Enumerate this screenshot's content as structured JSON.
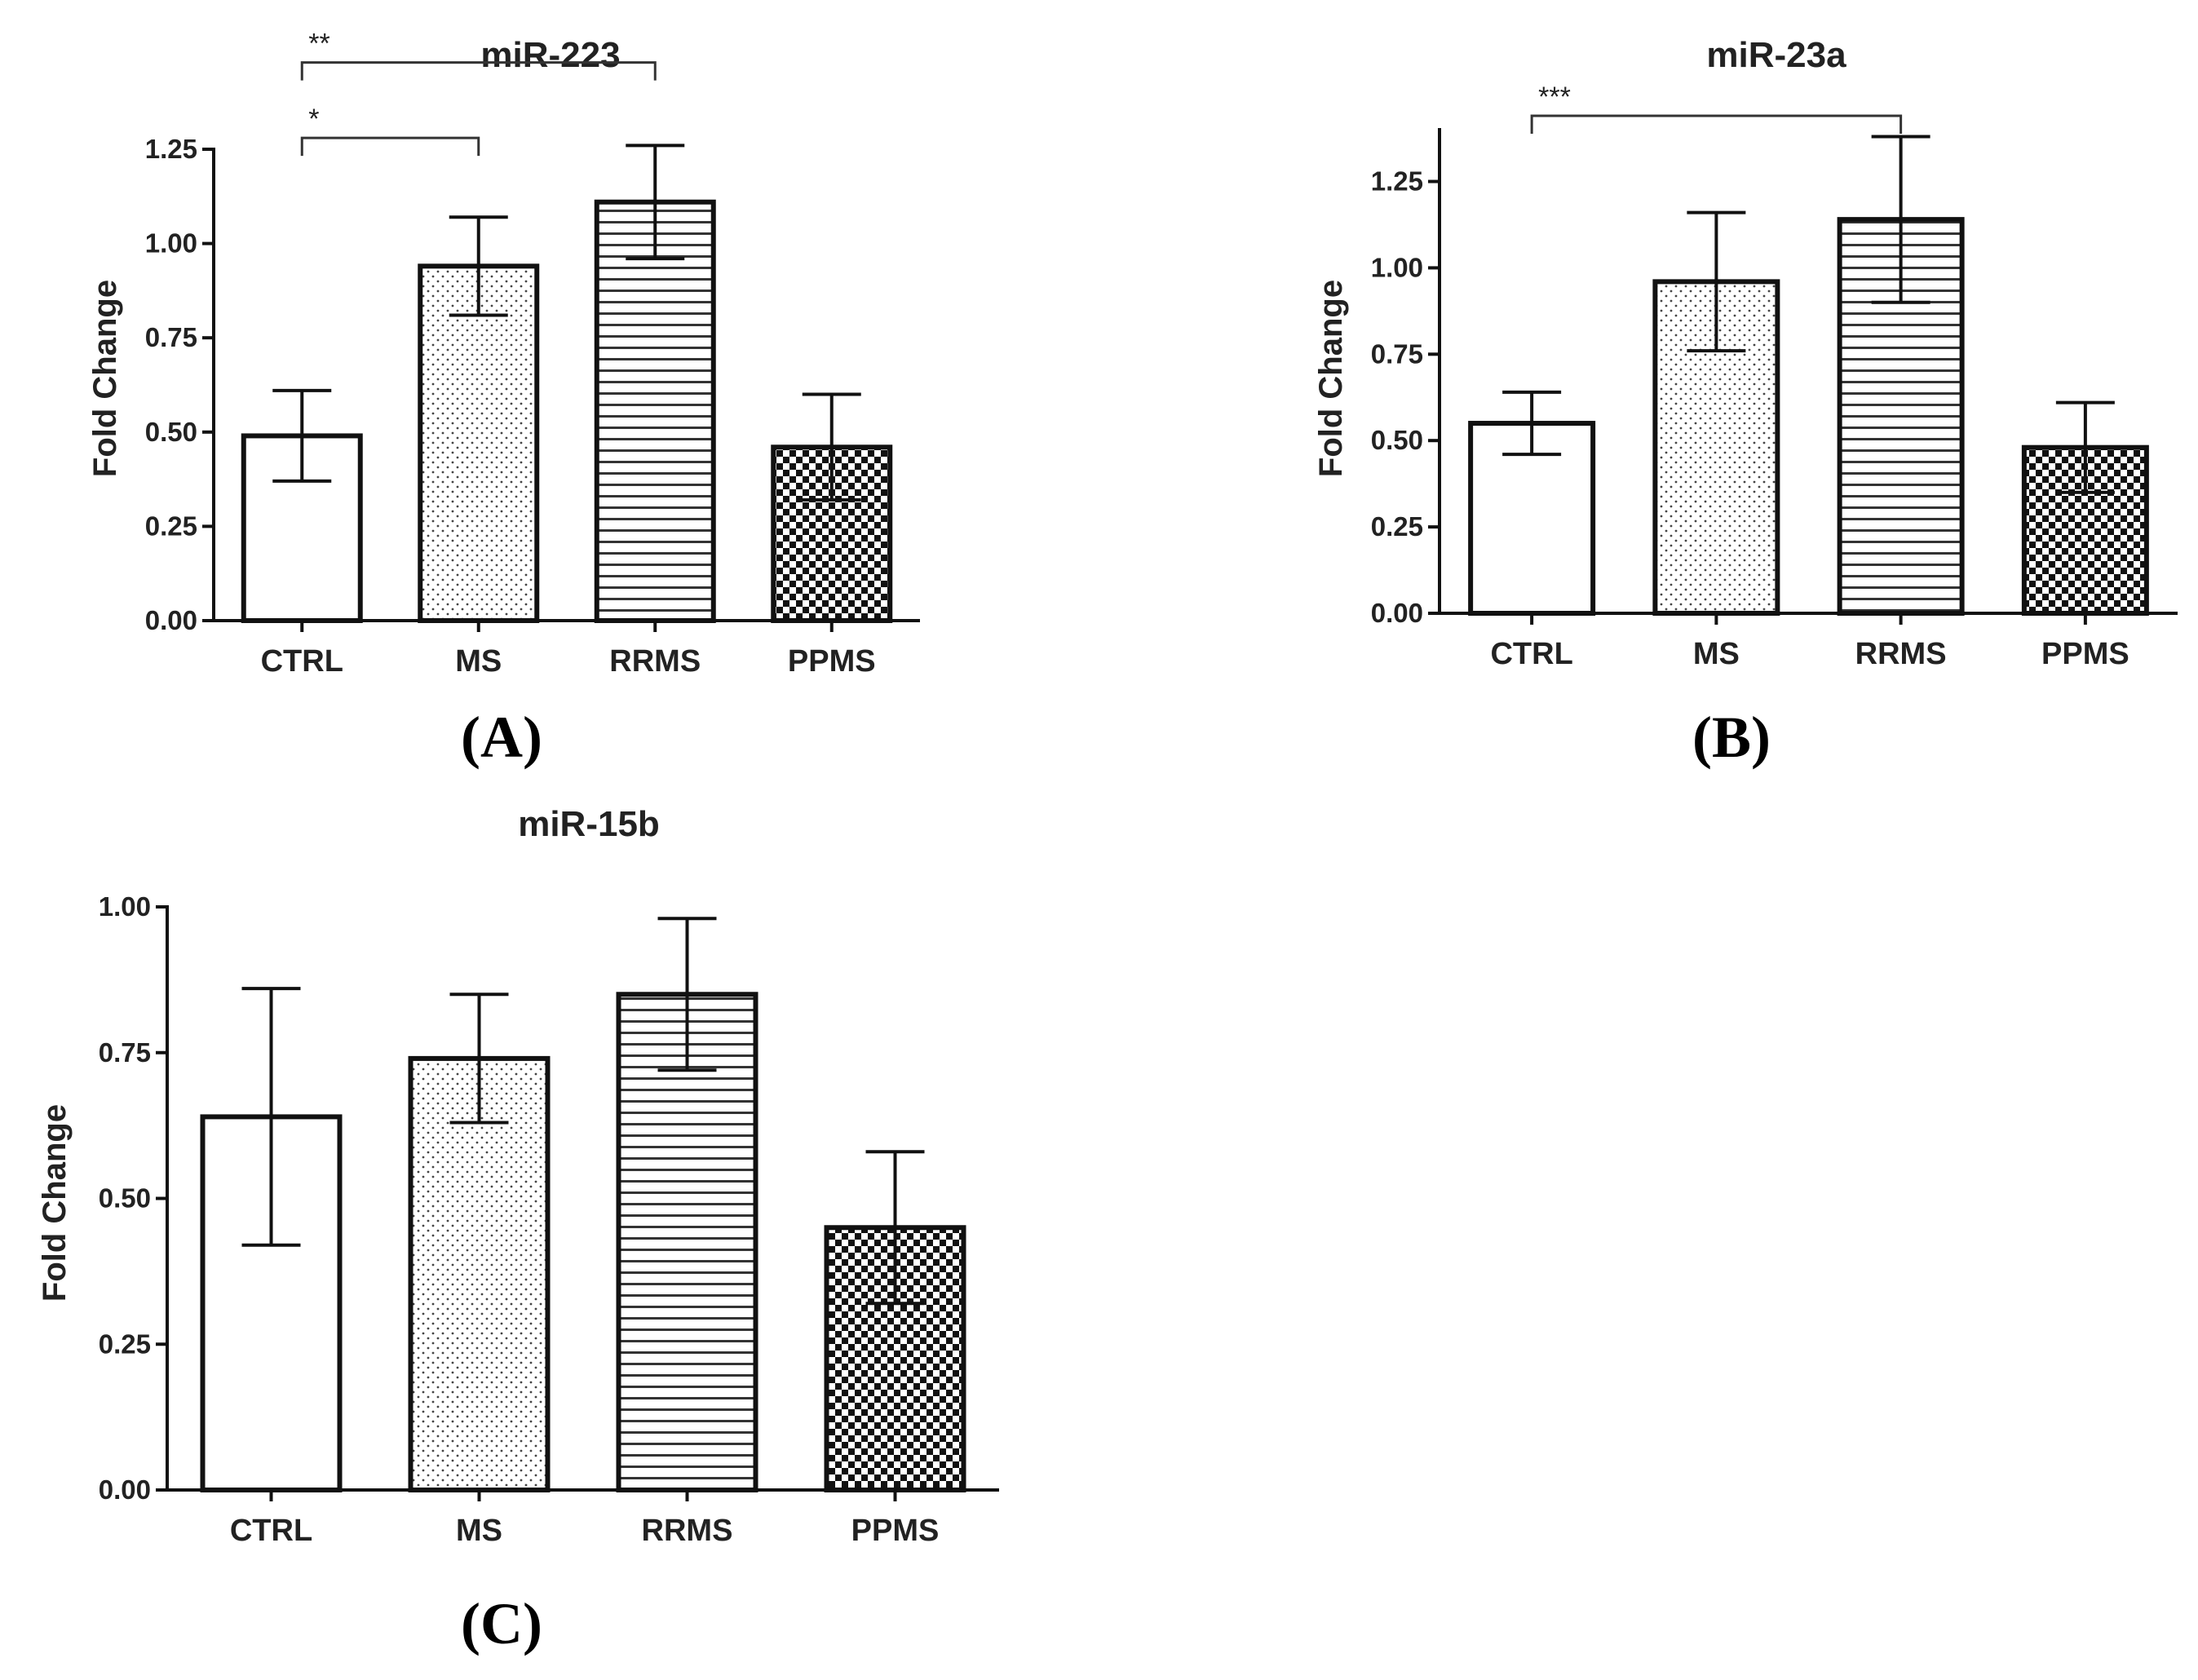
{
  "chart_data": [
    {
      "type": "bar",
      "title": "miR-223",
      "panel_label": "(A)",
      "ylabel": "Fold Change",
      "xlabel": "",
      "categories": [
        "CTRL",
        "MS",
        "RRMS",
        "PPMS"
      ],
      "values": [
        0.49,
        0.94,
        1.11,
        0.46
      ],
      "errors": [
        0.12,
        0.13,
        0.15,
        0.14
      ],
      "patterns": [
        "none",
        "dots",
        "hlines",
        "checker"
      ],
      "ylim": [
        0,
        1.25
      ],
      "yticks": [
        0.0,
        0.25,
        0.5,
        0.75,
        1.0,
        1.25
      ],
      "ytick_labels": [
        "0.00",
        "0.25",
        "0.50",
        "0.75",
        "1.00",
        "1.25"
      ],
      "significance": [
        {
          "from": 0,
          "to": 2,
          "label": "**",
          "level": 1.48
        },
        {
          "from": 0,
          "to": 1,
          "label": "*",
          "level": 1.28
        }
      ]
    },
    {
      "type": "bar",
      "title": "miR-23a",
      "panel_label": "(B)",
      "ylabel": "Fold Change",
      "xlabel": "",
      "categories": [
        "CTRL",
        "MS",
        "RRMS",
        "PPMS"
      ],
      "values": [
        0.55,
        0.96,
        1.14,
        0.48
      ],
      "errors": [
        0.09,
        0.2,
        0.24,
        0.13
      ],
      "patterns": [
        "none",
        "dots",
        "hlines",
        "checker"
      ],
      "ylim": [
        0,
        1.4
      ],
      "yticks": [
        0.0,
        0.25,
        0.5,
        0.75,
        1.0,
        1.25
      ],
      "ytick_labels": [
        "0.00",
        "0.25",
        "0.50",
        "0.75",
        "1.00",
        "1.25"
      ],
      "significance": [
        {
          "from": 0,
          "to": 2,
          "label": "***",
          "level": 1.44
        }
      ]
    },
    {
      "type": "bar",
      "title": "miR-15b",
      "panel_label": "(C)",
      "ylabel": "Fold Change",
      "xlabel": "",
      "categories": [
        "CTRL",
        "MS",
        "RRMS",
        "PPMS"
      ],
      "values": [
        0.64,
        0.74,
        0.85,
        0.45
      ],
      "errors": [
        0.22,
        0.11,
        0.13,
        0.13
      ],
      "patterns": [
        "none",
        "dots",
        "hlines",
        "checker"
      ],
      "ylim": [
        0,
        1.0
      ],
      "yticks": [
        0.0,
        0.25,
        0.5,
        0.75,
        1.0
      ],
      "ytick_labels": [
        "0.00",
        "0.25",
        "0.50",
        "0.75",
        "1.00"
      ],
      "significance": []
    }
  ],
  "colors": {
    "ink": "#111111",
    "background": "#ffffff"
  }
}
